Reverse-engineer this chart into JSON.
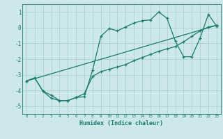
{
  "title": "",
  "xlabel": "Humidex (Indice chaleur)",
  "bg_color": "#cce8e8",
  "grid_color": "#b0d0d0",
  "line_color": "#1a7a6e",
  "xlim": [
    -0.5,
    23.5
  ],
  "ylim": [
    -5.5,
    1.5
  ],
  "yticks": [
    -5,
    -4,
    -3,
    -2,
    -1,
    0,
    1
  ],
  "xticks": [
    0,
    1,
    2,
    3,
    4,
    5,
    6,
    7,
    8,
    9,
    10,
    11,
    12,
    13,
    14,
    15,
    16,
    17,
    18,
    19,
    20,
    21,
    22,
    23
  ],
  "series1_x": [
    0,
    1,
    2,
    3,
    4,
    5,
    6,
    7,
    8,
    9,
    10,
    11,
    12,
    13,
    14,
    15,
    16,
    17,
    18,
    19,
    20,
    21,
    22,
    23
  ],
  "series1_y": [
    -3.4,
    -3.2,
    -4.05,
    -4.3,
    -4.65,
    -4.65,
    -4.45,
    -4.4,
    -2.7,
    -0.55,
    -0.05,
    -0.2,
    0.05,
    0.3,
    0.45,
    0.5,
    1.0,
    0.6,
    -0.85,
    -1.85,
    -1.85,
    -0.65,
    0.85,
    0.1
  ],
  "series2_x": [
    0,
    1,
    2,
    3,
    4,
    5,
    6,
    7,
    8,
    9,
    10,
    11,
    12,
    13,
    14,
    15,
    16,
    17,
    18,
    19,
    20,
    21,
    22,
    23
  ],
  "series2_y": [
    -3.4,
    -3.2,
    -4.05,
    -4.5,
    -4.65,
    -4.65,
    -4.45,
    -4.2,
    -3.1,
    -2.8,
    -2.65,
    -2.5,
    -2.35,
    -2.1,
    -1.9,
    -1.7,
    -1.5,
    -1.35,
    -1.2,
    -0.9,
    -0.55,
    -0.2,
    0.05,
    0.15
  ],
  "series3_x": [
    0,
    23
  ],
  "series3_y": [
    -3.4,
    0.15
  ]
}
